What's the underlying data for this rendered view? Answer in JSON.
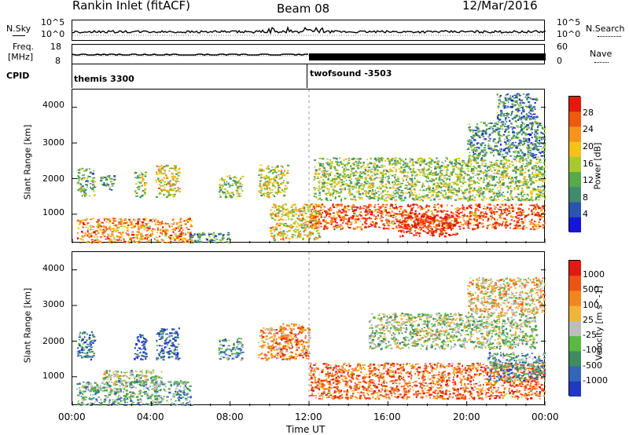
{
  "header": {
    "station": "Rankin Inlet (fitACF)",
    "beam": "Beam 08",
    "date": "12/Mar/2016"
  },
  "noise_panel": {
    "left_label": "N.Sky",
    "right_label": "N.Search",
    "left_ticks": [
      "10^5",
      "10^0"
    ],
    "right_ticks": [
      "10^5",
      "10^0"
    ]
  },
  "freq_panel": {
    "left_label_line1": "Freq.",
    "left_label_line2": "[MHz]",
    "right_label": "Nave",
    "left_ticks": [
      "18",
      "8"
    ],
    "right_ticks": [
      "60",
      "0"
    ]
  },
  "cpid": {
    "label": "CPID",
    "modes": [
      {
        "name": "themis 3300",
        "start_hour": 0
      },
      {
        "name": "twofsound -3503",
        "start_hour": 12
      }
    ]
  },
  "colors": {
    "power_scale": [
      "#1515d8",
      "#2b54b0",
      "#3f8b6e",
      "#57a94a",
      "#a7c92e",
      "#f5c21a",
      "#f7931e",
      "#ee5a10",
      "#e21b0c"
    ],
    "velocity_scale": [
      "#2237c4",
      "#3366b8",
      "#3f8c5e",
      "#5ab945",
      "#bdbdbd",
      "#f0b43a",
      "#f2861e",
      "#ec5412",
      "#e01a10"
    ]
  },
  "chart_data": [
    {
      "type": "heatmap",
      "name": "power",
      "ylabel": "Slant Range [km]",
      "yticks": [
        1000,
        2000,
        3000,
        4000
      ],
      "ylim": [
        180,
        4500
      ],
      "colorbar_label": "Power [dB]",
      "colorbar_ticks": [
        "28",
        "24",
        "20",
        "16",
        "12",
        "8",
        "4"
      ],
      "colorbar_range": [
        0,
        30
      ],
      "echo_regions": [
        {
          "t0": 0.2,
          "t1": 1.1,
          "r0": 1500,
          "r1": 2300,
          "level": 0.4
        },
        {
          "t0": 1.4,
          "t1": 2.1,
          "r0": 1700,
          "r1": 2100,
          "level": 0.35
        },
        {
          "t0": 3.1,
          "t1": 3.7,
          "r0": 1500,
          "r1": 2200,
          "level": 0.45
        },
        {
          "t0": 4.2,
          "t1": 5.4,
          "r0": 1500,
          "r1": 2400,
          "level": 0.6
        },
        {
          "t0": 7.4,
          "t1": 8.6,
          "r0": 1500,
          "r1": 2100,
          "level": 0.45
        },
        {
          "t0": 9.4,
          "t1": 10.9,
          "r0": 1500,
          "r1": 2400,
          "level": 0.5
        },
        {
          "t0": 0.2,
          "t1": 6.0,
          "r0": 200,
          "r1": 900,
          "level": 0.75
        },
        {
          "t0": 5.8,
          "t1": 8.0,
          "r0": 200,
          "r1": 500,
          "level": 0.3
        },
        {
          "t0": 10.0,
          "t1": 12.5,
          "r0": 300,
          "r1": 1300,
          "level": 0.6
        },
        {
          "t0": 12.0,
          "t1": 24.0,
          "r0": 600,
          "r1": 1300,
          "level": 0.85
        },
        {
          "t0": 16.5,
          "t1": 19.5,
          "r0": 400,
          "r1": 1000,
          "level": 0.95
        },
        {
          "t0": 12.2,
          "t1": 24.0,
          "r0": 1400,
          "r1": 2600,
          "level": 0.45
        },
        {
          "t0": 20.0,
          "t1": 24.0,
          "r0": 2600,
          "r1": 3600,
          "level": 0.3
        },
        {
          "t0": 21.5,
          "t1": 23.5,
          "r0": 3600,
          "r1": 4400,
          "level": 0.25
        }
      ]
    },
    {
      "type": "heatmap",
      "name": "velocity",
      "ylabel": "Slant Range [km]",
      "xlabel": "Time UT",
      "yticks": [
        1000,
        2000,
        3000,
        4000
      ],
      "ylim": [
        180,
        4500
      ],
      "xticks": [
        "00:00",
        "04:00",
        "08:00",
        "12:00",
        "16:00",
        "20:00",
        "00:00"
      ],
      "xlim": [
        0,
        24
      ],
      "colorbar_label": "Velocity [m s^-1]",
      "colorbar_ticks": [
        "1000",
        "500",
        "100",
        "25",
        "-25",
        "-100",
        "-500",
        "-1000"
      ],
      "echo_regions": [
        {
          "t0": 0.2,
          "t1": 1.1,
          "r0": 1500,
          "r1": 2300,
          "level": 0.2
        },
        {
          "t0": 3.1,
          "t1": 3.7,
          "r0": 1500,
          "r1": 2200,
          "level": 0.1
        },
        {
          "t0": 4.2,
          "t1": 5.4,
          "r0": 1500,
          "r1": 2400,
          "level": 0.15
        },
        {
          "t0": 7.4,
          "t1": 8.6,
          "r0": 1500,
          "r1": 2100,
          "level": 0.3
        },
        {
          "t0": 9.4,
          "t1": 10.9,
          "r0": 1500,
          "r1": 2400,
          "level": 0.7
        },
        {
          "t0": 10.5,
          "t1": 12.0,
          "r0": 1500,
          "r1": 2500,
          "level": 0.75
        },
        {
          "t0": 1.5,
          "t1": 4.5,
          "r0": 800,
          "r1": 1200,
          "level": 0.45
        },
        {
          "t0": 0.2,
          "t1": 6.0,
          "r0": 200,
          "r1": 900,
          "level": 0.35
        },
        {
          "t0": 12.0,
          "t1": 24.0,
          "r0": 400,
          "r1": 1400,
          "level": 0.8
        },
        {
          "t0": 15.0,
          "t1": 23.5,
          "r0": 1800,
          "r1": 2800,
          "level": 0.45
        },
        {
          "t0": 21.0,
          "t1": 24.0,
          "r0": 900,
          "r1": 1700,
          "level": 0.3
        },
        {
          "t0": 20.0,
          "t1": 24.0,
          "r0": 2800,
          "r1": 3800,
          "level": 0.6
        }
      ]
    }
  ]
}
